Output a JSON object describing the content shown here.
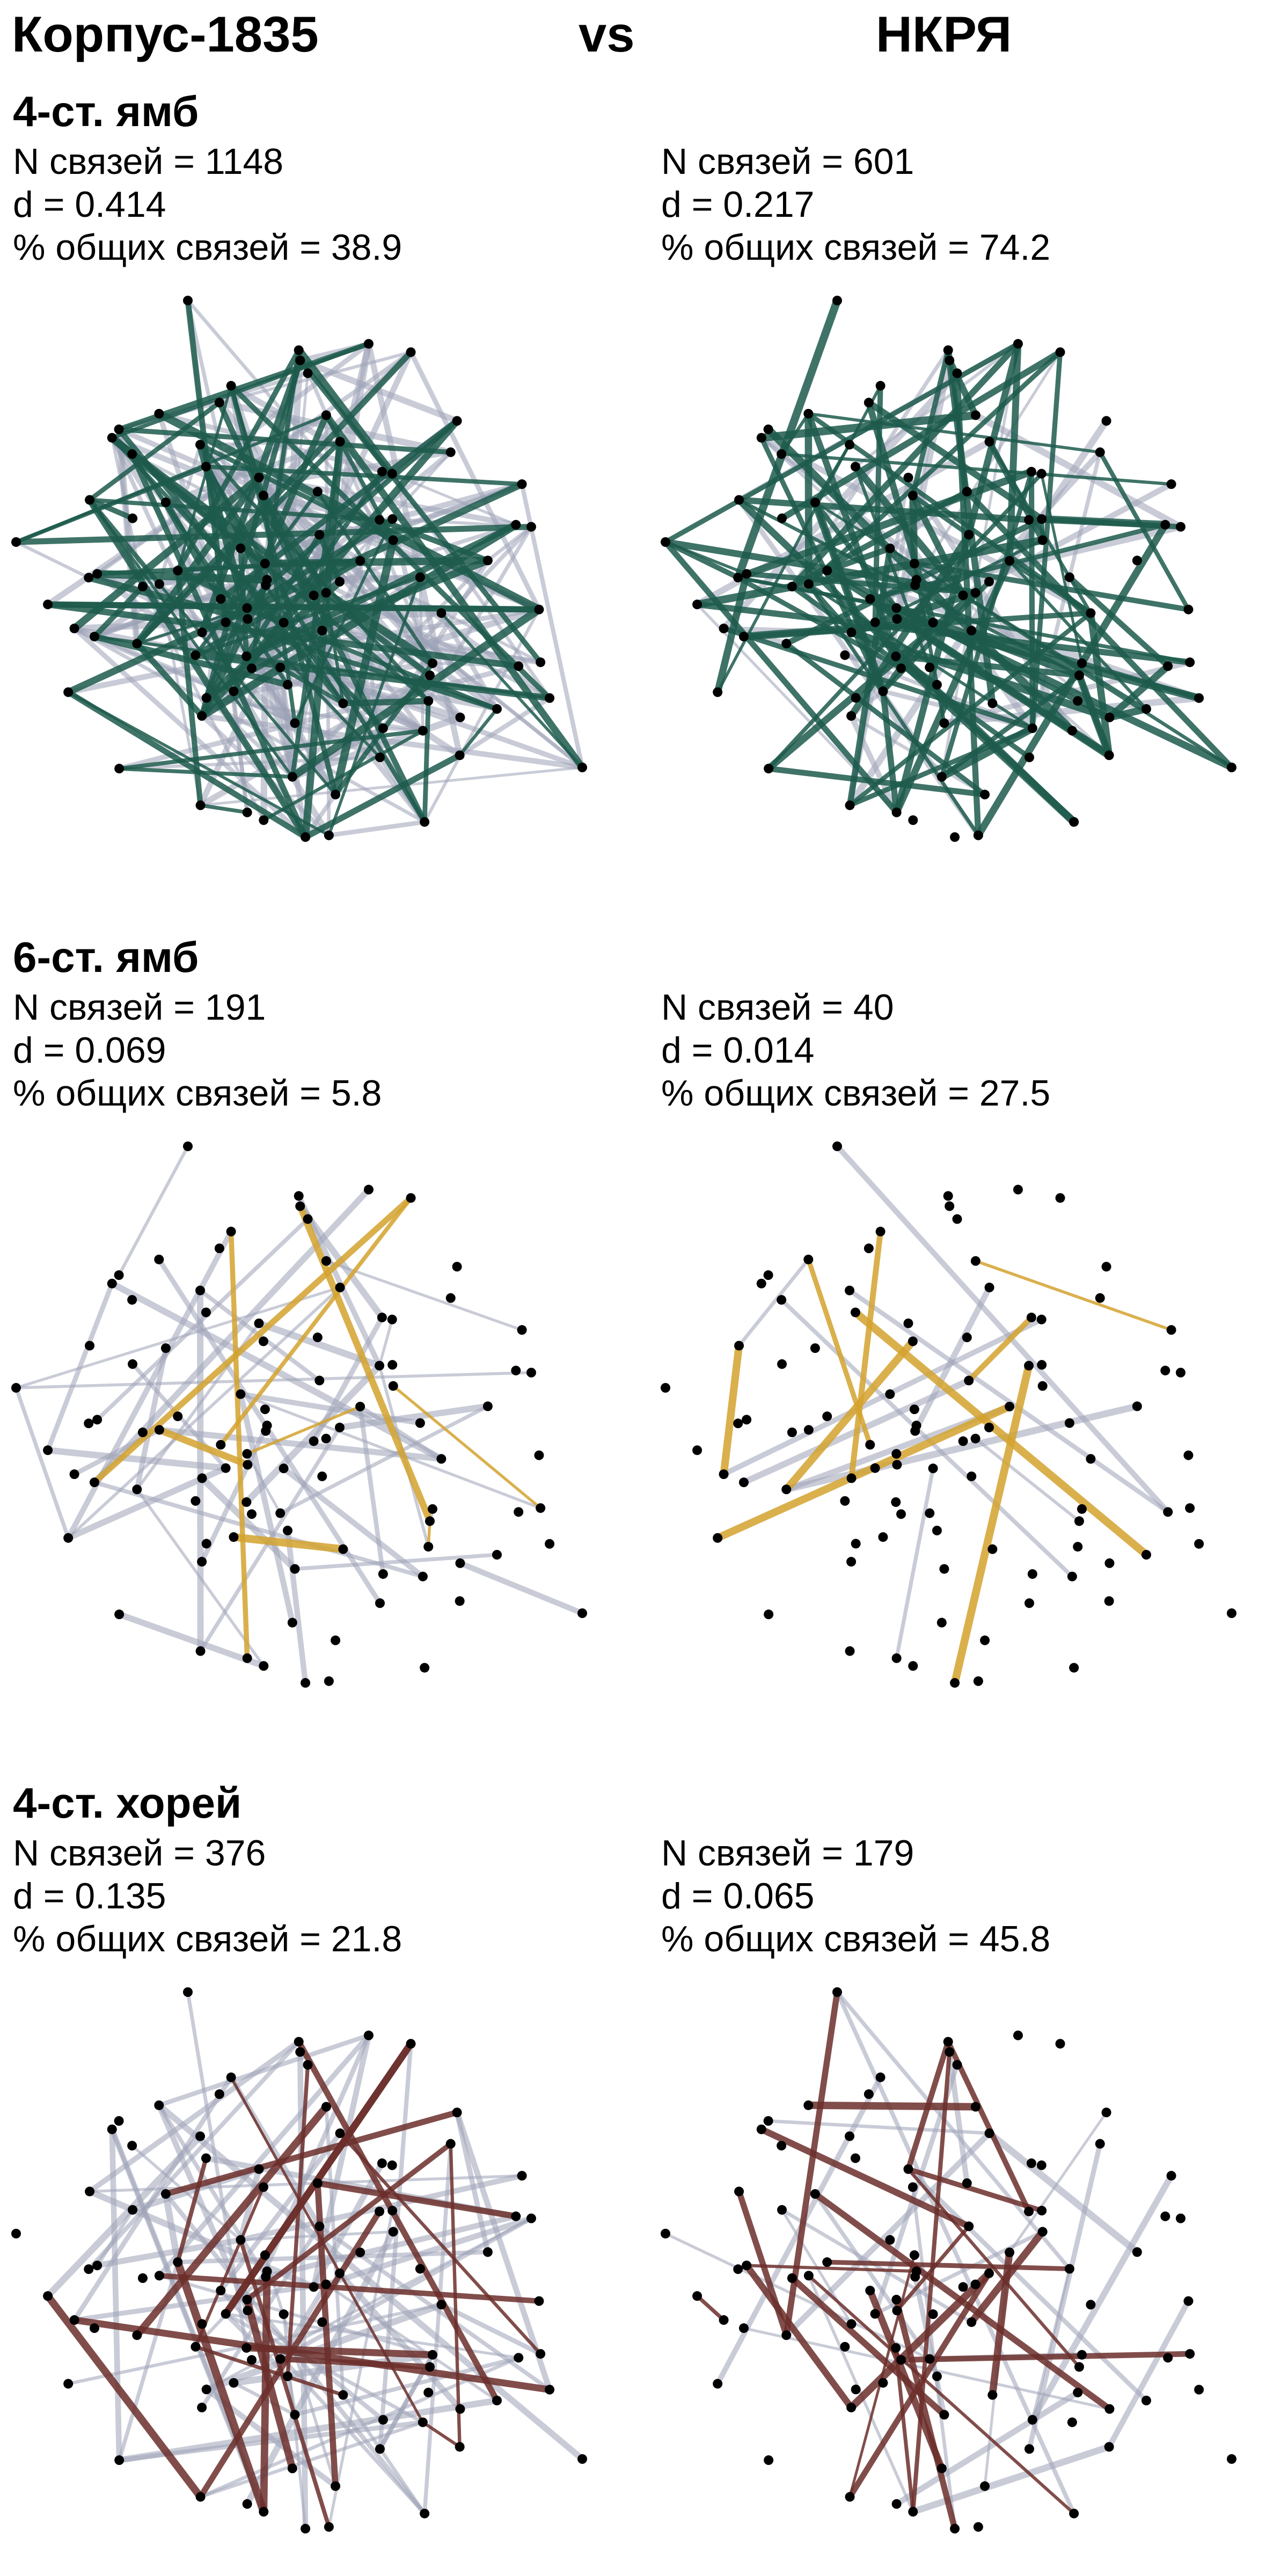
{
  "header": {
    "left": "Корпус-1835",
    "vs": "vs",
    "right": "НКРЯ"
  },
  "meters": [
    {
      "name": "4-ст. ямб",
      "left": {
        "n_line": "N связей = 1148",
        "d_line": "d = 0.414",
        "pct_line": "% общих связей = 38.9"
      },
      "right": {
        "n_line": "N связей = 601",
        "d_line": "d = 0.217",
        "pct_line": "% общих связей = 74.2"
      },
      "edge_color": "#1d5a4c",
      "n_edges": [
        1148,
        601
      ],
      "shared_pct": [
        38.9,
        74.2
      ]
    },
    {
      "name": "6-ст. ямб",
      "left": {
        "n_line": "N связей = 191",
        "d_line": "d = 0.069",
        "pct_line": "% общих связей = 5.8"
      },
      "right": {
        "n_line": "N связей = 40",
        "d_line": "d = 0.014",
        "pct_line": "% общих связей = 27.5"
      },
      "edge_color": "#d4a22e",
      "n_edges": [
        191,
        40
      ],
      "shared_pct": [
        5.8,
        27.5
      ]
    },
    {
      "name": "4-ст. хорей",
      "left": {
        "n_line": "N связей = 376",
        "d_line": "d = 0.135",
        "pct_line": "% общих связей = 21.8"
      },
      "right": {
        "n_line": "N связей = 179",
        "d_line": "d = 0.065",
        "pct_line": "% общих связей = 45.8"
      },
      "edge_color": "#6b2e2a",
      "n_edges": [
        376,
        179
      ],
      "shared_pct": [
        21.8,
        45.8
      ]
    }
  ],
  "unique_edge_color": "#9da2b6",
  "node_color": "#000000"
}
